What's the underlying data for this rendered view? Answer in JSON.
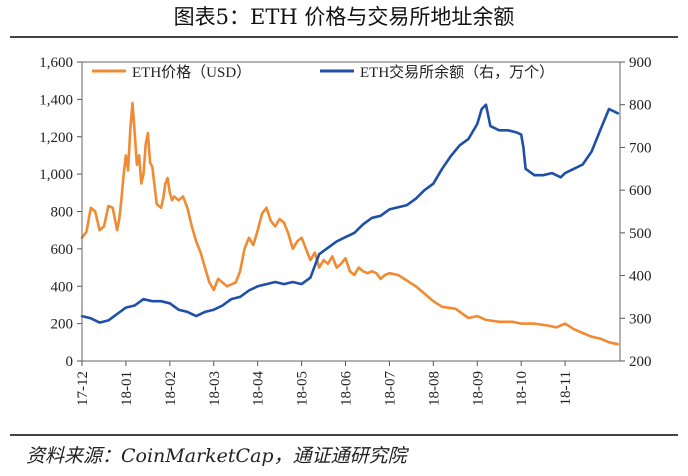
{
  "figure_title": "图表5：ETH 价格与交易所地址余额",
  "source": "资料来源：CoinMarketCap，通证通研究院",
  "chart_data": {
    "type": "line",
    "x_tick_labels": [
      "17-12",
      "18-01",
      "18-02",
      "18-03",
      "18-04",
      "18-05",
      "18-06",
      "18-07",
      "18-08",
      "18-09",
      "18-10",
      "18-11"
    ],
    "y_left": {
      "min": 0,
      "max": 1600,
      "ticks": [
        0,
        200,
        400,
        600,
        800,
        1000,
        1200,
        1400,
        1600
      ],
      "tick_labels": [
        "0",
        "200",
        "400",
        "600",
        "800",
        "1,000",
        "1,200",
        "1,400",
        "1,600"
      ]
    },
    "y_right": {
      "min": 200,
      "max": 900,
      "ticks": [
        200,
        300,
        400,
        500,
        600,
        700,
        800,
        900
      ],
      "tick_labels": [
        "200",
        "300",
        "400",
        "500",
        "600",
        "700",
        "800",
        "900"
      ]
    },
    "legend_position": "top",
    "series": [
      {
        "name": "ETH价格（USD）",
        "axis": "left",
        "color": "#F08A33",
        "x": [
          0,
          0.1,
          0.2,
          0.3,
          0.4,
          0.5,
          0.6,
          0.7,
          0.75,
          0.8,
          0.85,
          0.9,
          0.95,
          1.0,
          1.05,
          1.1,
          1.15,
          1.2,
          1.25,
          1.3,
          1.35,
          1.4,
          1.45,
          1.5,
          1.55,
          1.6,
          1.7,
          1.8,
          1.85,
          1.9,
          1.95,
          2.0,
          2.05,
          2.1,
          2.2,
          2.3,
          2.4,
          2.5,
          2.6,
          2.7,
          2.8,
          2.9,
          3.0,
          3.1,
          3.2,
          3.3,
          3.4,
          3.5,
          3.6,
          3.7,
          3.8,
          3.9,
          4.0,
          4.1,
          4.2,
          4.3,
          4.4,
          4.5,
          4.6,
          4.7,
          4.8,
          4.9,
          5.0,
          5.1,
          5.2,
          5.3,
          5.4,
          5.5,
          5.6,
          5.7,
          5.8,
          5.9,
          6.0,
          6.1,
          6.2,
          6.3,
          6.4,
          6.5,
          6.6,
          6.7,
          6.8,
          6.9,
          7.0,
          7.2,
          7.4,
          7.6,
          7.8,
          8.0,
          8.2,
          8.5,
          8.8,
          9.0,
          9.2,
          9.5,
          9.8,
          10.0,
          10.3,
          10.6,
          10.8,
          11.0,
          11.2,
          11.4,
          11.6,
          11.8,
          12.0,
          12.2
        ],
        "y": [
          660,
          690,
          820,
          800,
          700,
          720,
          830,
          820,
          760,
          700,
          760,
          870,
          1000,
          1100,
          1020,
          1240,
          1380,
          1220,
          1050,
          1100,
          950,
          1000,
          1160,
          1220,
          1060,
          1040,
          840,
          820,
          870,
          950,
          980,
          900,
          860,
          880,
          860,
          880,
          820,
          720,
          640,
          580,
          500,
          420,
          380,
          440,
          420,
          400,
          410,
          420,
          480,
          600,
          660,
          620,
          700,
          790,
          820,
          750,
          720,
          760,
          740,
          680,
          600,
          640,
          660,
          600,
          540,
          580,
          500,
          540,
          520,
          560,
          500,
          520,
          550,
          480,
          460,
          500,
          480,
          470,
          480,
          470,
          440,
          460,
          470,
          460,
          430,
          400,
          360,
          320,
          290,
          280,
          230,
          240,
          220,
          210,
          210,
          200,
          200,
          190,
          180,
          200,
          170,
          150,
          130,
          120,
          100,
          90
        ]
      },
      {
        "name": "ETH交易所余额（右，万个）",
        "axis": "right",
        "color": "#1F4FA8",
        "x": [
          0,
          0.2,
          0.4,
          0.6,
          0.8,
          1.0,
          1.2,
          1.4,
          1.6,
          1.8,
          2.0,
          2.2,
          2.4,
          2.6,
          2.8,
          3.0,
          3.2,
          3.4,
          3.6,
          3.8,
          4.0,
          4.2,
          4.4,
          4.6,
          4.8,
          5.0,
          5.2,
          5.4,
          5.6,
          5.8,
          6.0,
          6.2,
          6.4,
          6.6,
          6.8,
          7.0,
          7.2,
          7.4,
          7.6,
          7.8,
          8.0,
          8.2,
          8.4,
          8.6,
          8.8,
          9.0,
          9.1,
          9.2,
          9.3,
          9.5,
          9.7,
          9.9,
          10.0,
          10.05,
          10.1,
          10.3,
          10.5,
          10.7,
          10.9,
          11.0,
          11.2,
          11.4,
          11.6,
          11.8,
          12.0,
          12.2
        ],
        "y": [
          305,
          300,
          290,
          295,
          310,
          325,
          330,
          345,
          340,
          340,
          335,
          320,
          315,
          305,
          315,
          320,
          330,
          345,
          350,
          365,
          375,
          380,
          385,
          380,
          385,
          380,
          395,
          450,
          465,
          480,
          490,
          500,
          520,
          535,
          540,
          555,
          560,
          565,
          580,
          600,
          615,
          650,
          680,
          705,
          720,
          755,
          790,
          800,
          750,
          740,
          740,
          735,
          730,
          700,
          650,
          635,
          635,
          640,
          630,
          640,
          650,
          660,
          690,
          740,
          790,
          780
        ]
      }
    ]
  }
}
